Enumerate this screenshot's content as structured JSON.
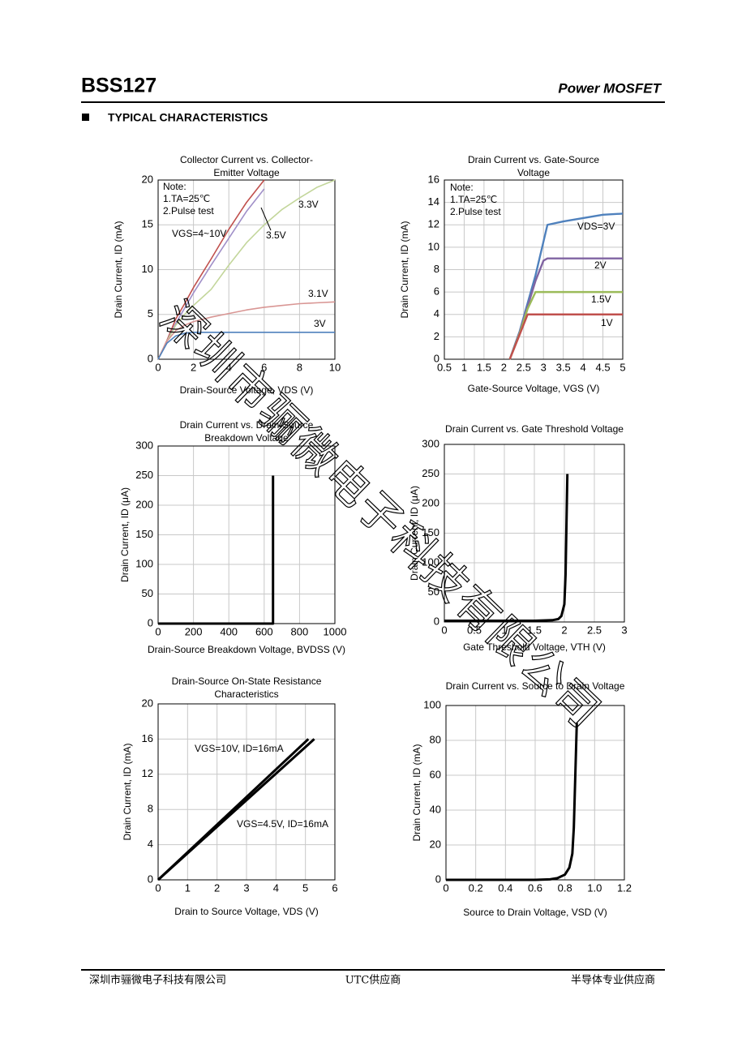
{
  "header": {
    "part": "BSS127",
    "category": "Power MOSFET"
  },
  "section": "TYPICAL CHARACTERISTICS",
  "watermark": "深圳市骊微电子科技有限公司",
  "footer": [
    "深圳市骊微电子科技有限公司",
    "UTC供应商",
    "半导体专业供应商"
  ],
  "chart_data": [
    {
      "type": "line",
      "title": [
        "Collector Current vs. Collector-",
        "Emitter Voltage"
      ],
      "xlabel": "Drain-Source Voltage, VDS (V)",
      "ylabel": "Drain Current, ID (mA)",
      "annotations": [
        "Note:",
        "1.TA=25℃",
        "2.Pulse test"
      ],
      "xlim": [
        0,
        10
      ],
      "ylim": [
        0,
        20
      ],
      "xticks": [
        0,
        2,
        4,
        6,
        8,
        10
      ],
      "yticks": [
        0,
        5,
        10,
        15,
        20
      ],
      "grid": true,
      "x": [
        0,
        0.5,
        1,
        1.5,
        2,
        3,
        4,
        5,
        6,
        7,
        8,
        9,
        10
      ],
      "series": [
        {
          "name": "VGS=4~10V",
          "color": "#c0504d",
          "values": [
            0,
            2.1,
            4.5,
            6.2,
            8,
            11.2,
            14.5,
            17.5,
            20,
            null,
            null,
            null,
            null
          ]
        },
        {
          "name": "3.5V",
          "color": "#a08fc8",
          "values": [
            0,
            2,
            4,
            5.7,
            7.4,
            10.5,
            13.5,
            16.5,
            19,
            null,
            null,
            null,
            null
          ]
        },
        {
          "name": "3.3V",
          "color": "#c3d69b",
          "values": [
            0,
            2,
            3.8,
            5,
            6,
            7.8,
            10.5,
            13,
            15,
            16.7,
            18,
            19.2,
            20
          ]
        },
        {
          "name": "3.1V",
          "color": "#d99694",
          "values": [
            0,
            2,
            3.2,
            3.8,
            4.2,
            4.7,
            5.1,
            5.5,
            5.8,
            6,
            6.2,
            6.3,
            6.4
          ]
        },
        {
          "name": "3V",
          "color": "#4f81bd",
          "values": [
            0,
            1.8,
            2.6,
            2.9,
            3,
            3,
            3,
            3,
            3,
            3,
            3,
            3,
            3
          ]
        }
      ]
    },
    {
      "type": "line",
      "title": [
        "Drain Current vs. Gate-Source",
        "Voltage"
      ],
      "xlabel": "Gate-Source Voltage, VGS (V)",
      "ylabel": "Drain Current, ID (mA)",
      "annotations": [
        "Note:",
        "1.TA=25℃",
        "2.Pulse test"
      ],
      "xlim": [
        0.5,
        5
      ],
      "ylim": [
        0,
        16
      ],
      "xticks": [
        0.5,
        1,
        1.5,
        2,
        2.5,
        3,
        3.5,
        4,
        4.5,
        5
      ],
      "yticks": [
        0,
        2,
        4,
        6,
        8,
        10,
        12,
        14,
        16
      ],
      "grid": true,
      "x": [
        2.15,
        2.4,
        2.6,
        2.8,
        3.0,
        3.1,
        3.5,
        4,
        4.5,
        5
      ],
      "series": [
        {
          "name": "VDS=3V",
          "color": "#4f81bd",
          "values": [
            0,
            2.5,
            5,
            7.5,
            10.5,
            12,
            12.3,
            12.6,
            12.9,
            13
          ]
        },
        {
          "name": "2V",
          "color": "#8064a2",
          "values": [
            0,
            2.4,
            4.7,
            7,
            8.8,
            9,
            9,
            9,
            9,
            9
          ]
        },
        {
          "name": "1.5V",
          "color": "#9bbb59",
          "values": [
            0,
            2.3,
            4.5,
            6,
            6,
            6,
            6,
            6,
            6,
            6
          ]
        },
        {
          "name": "1V",
          "color": "#c0504d",
          "values": [
            0,
            2.2,
            4,
            4,
            4,
            4,
            4,
            4,
            4,
            4
          ]
        }
      ]
    },
    {
      "type": "line",
      "title": [
        "Drain Current vs. Drain-Source",
        "Breakdown Voltage"
      ],
      "xlabel": "Drain-Source Breakdown Voltage, BVDSS (V)",
      "ylabel": "Drain Current, ID (μA)",
      "xlim": [
        0,
        1000
      ],
      "ylim": [
        0,
        300
      ],
      "xticks": [
        0,
        200,
        400,
        600,
        800,
        1000
      ],
      "yticks": [
        0,
        50,
        100,
        150,
        200,
        250,
        300
      ],
      "grid": true,
      "x": [
        0,
        640,
        650,
        650
      ],
      "series": [
        {
          "color": "#000000",
          "values": [
            0,
            0,
            0,
            250
          ]
        }
      ]
    },
    {
      "type": "line",
      "title": [
        "Drain Current vs. Gate Threshold Voltage"
      ],
      "xlabel": "Gate Threshold Voltage, VTH (V)",
      "ylabel": "Drain Current, ID (μA)",
      "xlim": [
        0,
        3
      ],
      "ylim": [
        0,
        300
      ],
      "xticks": [
        0,
        0.5,
        1,
        1.5,
        2,
        2.5,
        3
      ],
      "yticks": [
        0,
        50,
        100,
        150,
        200,
        250,
        300
      ],
      "grid": true,
      "x": [
        0,
        1,
        1.5,
        1.8,
        1.9,
        1.95,
        2.0,
        2.02,
        2.05
      ],
      "series": [
        {
          "color": "#000000",
          "values": [
            2,
            2,
            2,
            3,
            5,
            10,
            30,
            80,
            250
          ]
        }
      ]
    },
    {
      "type": "line",
      "title": [
        "Drain-Source On-State Resistance",
        "Characteristics"
      ],
      "xlabel": "Drain to Source Voltage, VDS (V)",
      "ylabel": "Drain Current, ID (mA)",
      "xlim": [
        0,
        6
      ],
      "ylim": [
        0,
        20
      ],
      "xticks": [
        0,
        1,
        2,
        3,
        4,
        5,
        6
      ],
      "yticks": [
        0,
        4,
        8,
        12,
        16,
        20
      ],
      "grid": true,
      "series": [
        {
          "name": "VGS=10V, ID=16mA",
          "color": "#000000",
          "x": [
            0,
            5.1
          ],
          "values": [
            0,
            16
          ]
        },
        {
          "name": "VGS=4.5V, ID=16mA",
          "color": "#000000",
          "x": [
            0,
            5.3
          ],
          "values": [
            0,
            16
          ]
        }
      ]
    },
    {
      "type": "line",
      "title": [
        "Drain Current vs. Source to Drain Voltage"
      ],
      "xlabel": "Source to Drain Voltage, VSD (V)",
      "ylabel": "Drain Current, ID (mA)",
      "xlim": [
        0,
        1.2
      ],
      "ylim": [
        0,
        100
      ],
      "xticks": [
        0,
        0.2,
        0.4,
        0.6,
        0.8,
        {
          "value": 1,
          "label": "1.0"
        },
        1.2
      ],
      "yticks": [
        0,
        20,
        40,
        60,
        80,
        100
      ],
      "grid": true,
      "x": [
        0,
        0.6,
        0.7,
        0.75,
        0.8,
        0.83,
        0.85,
        0.86,
        0.87,
        0.88
      ],
      "series": [
        {
          "color": "#000000",
          "values": [
            0,
            0,
            0.3,
            1,
            3,
            7,
            15,
            30,
            60,
            90
          ]
        }
      ]
    }
  ]
}
